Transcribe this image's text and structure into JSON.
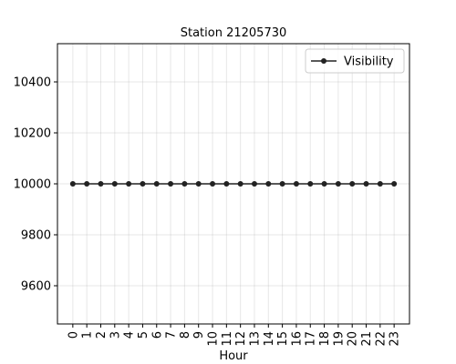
{
  "chart_data": {
    "type": "line",
    "title": "Station 21205730",
    "xlabel": "Hour",
    "ylabel": "",
    "x": [
      0,
      1,
      2,
      3,
      4,
      5,
      6,
      7,
      8,
      9,
      10,
      11,
      12,
      13,
      14,
      15,
      16,
      17,
      18,
      19,
      20,
      21,
      22,
      23
    ],
    "series": [
      {
        "name": "Visibility",
        "color": "#222222",
        "values": [
          10000,
          10000,
          10000,
          10000,
          10000,
          10000,
          10000,
          10000,
          10000,
          10000,
          10000,
          10000,
          10000,
          10000,
          10000,
          10000,
          10000,
          10000,
          10000,
          10000,
          10000,
          10000,
          10000,
          10000
        ]
      }
    ],
    "ylim": [
      9450,
      10550
    ],
    "yticks": [
      9600,
      9800,
      10000,
      10200,
      10400
    ],
    "xlim": [
      -1.1,
      24.1
    ],
    "grid": true,
    "legend": "top-right"
  }
}
